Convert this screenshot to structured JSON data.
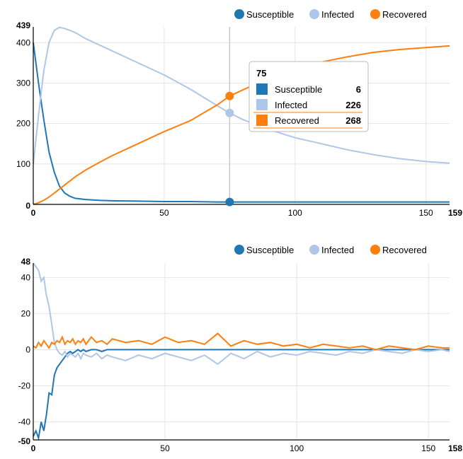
{
  "colors": {
    "susceptible": "#1f77b4",
    "infected": "#aec7e8",
    "recovered": "#ff7f0e",
    "grid": "#e5e5e5",
    "axis": "#000000"
  },
  "chart_data": [
    {
      "type": "line",
      "legend": [
        "Susceptible",
        "Infected",
        "Recovered"
      ],
      "legend_position": "top-right",
      "grid": true,
      "xlim": [
        0,
        159
      ],
      "ylim": [
        0,
        439
      ],
      "x_ticks": [
        "0",
        "50",
        "100",
        "150",
        "159"
      ],
      "y_ticks": [
        "0",
        "100",
        "200",
        "300",
        "400",
        "439"
      ],
      "x": [
        0,
        2,
        4,
        6,
        8,
        10,
        12,
        14,
        16,
        20,
        25,
        30,
        40,
        50,
        60,
        70,
        75,
        80,
        90,
        100,
        110,
        120,
        130,
        140,
        150,
        159
      ],
      "series": [
        {
          "name": "Susceptible",
          "values": [
            400,
            300,
            210,
            130,
            80,
            45,
            28,
            20,
            15,
            12,
            10,
            9,
            8,
            7,
            7,
            6,
            6,
            6,
            6,
            6,
            6,
            6,
            6,
            6,
            6,
            6
          ]
        },
        {
          "name": "Infected",
          "values": [
            100,
            220,
            330,
            400,
            430,
            438,
            435,
            430,
            425,
            410,
            395,
            380,
            350,
            320,
            285,
            245,
            226,
            210,
            185,
            165,
            150,
            135,
            123,
            113,
            106,
            102
          ]
        },
        {
          "name": "Recovered",
          "values": [
            0,
            4,
            10,
            18,
            28,
            38,
            48,
            58,
            68,
            85,
            103,
            120,
            150,
            180,
            207,
            245,
            268,
            283,
            312,
            335,
            352,
            365,
            376,
            383,
            388,
            392
          ]
        }
      ],
      "tooltip": {
        "x": "75",
        "rows": [
          {
            "name": "Susceptible",
            "value": "6"
          },
          {
            "name": "Infected",
            "value": "226"
          },
          {
            "name": "Recovered",
            "value": "268"
          }
        ]
      }
    },
    {
      "type": "line",
      "legend": [
        "Susceptible",
        "Infected",
        "Recovered"
      ],
      "legend_position": "top-right",
      "grid": true,
      "xlim": [
        0,
        158
      ],
      "ylim": [
        -50,
        48
      ],
      "x_ticks": [
        "0",
        "50",
        "100",
        "150",
        "158"
      ],
      "y_ticks": [
        "-50",
        "-40",
        "-20",
        "0",
        "20",
        "40",
        "48"
      ],
      "x": [
        0,
        1,
        2,
        3,
        4,
        5,
        6,
        7,
        8,
        9,
        10,
        11,
        12,
        13,
        14,
        15,
        16,
        17,
        18,
        19,
        20,
        22,
        24,
        26,
        28,
        30,
        35,
        40,
        45,
        50,
        55,
        60,
        65,
        70,
        75,
        80,
        85,
        90,
        95,
        100,
        105,
        110,
        115,
        120,
        125,
        130,
        135,
        140,
        145,
        150,
        155,
        158
      ],
      "series": [
        {
          "name": "Susceptible",
          "values": [
            -48,
            -45,
            -49,
            -40,
            -45,
            -36,
            -24,
            -25,
            -14,
            -10,
            -8,
            -6,
            -4,
            -2,
            -1,
            -2,
            -1,
            0,
            -1,
            0,
            -1,
            0,
            0,
            -1,
            0,
            0,
            0,
            0,
            0,
            0,
            0,
            0,
            0,
            0,
            0,
            0,
            0,
            0,
            0,
            0,
            0,
            0,
            0,
            0,
            0,
            0,
            0,
            0,
            0,
            0,
            0,
            0
          ]
        },
        {
          "name": "Infected",
          "values": [
            48,
            46,
            44,
            38,
            40,
            30,
            24,
            14,
            4,
            0,
            -2,
            -3,
            -1,
            -4,
            -2,
            -3,
            -4,
            -2,
            -5,
            -2,
            -3,
            -4,
            -2,
            -5,
            -3,
            -4,
            -6,
            -3,
            -5,
            -2,
            -4,
            -6,
            -3,
            -8,
            -2,
            -5,
            -1,
            -4,
            -2,
            -3,
            -1,
            -2,
            -3,
            -1,
            -2,
            0,
            -1,
            -2,
            0,
            -1,
            0,
            -1
          ]
        },
        {
          "name": "Recovered",
          "values": [
            2,
            1,
            4,
            2,
            5,
            3,
            1,
            4,
            3,
            5,
            4,
            7,
            3,
            5,
            4,
            6,
            3,
            5,
            4,
            6,
            3,
            7,
            4,
            5,
            3,
            6,
            4,
            5,
            3,
            7,
            4,
            5,
            3,
            9,
            2,
            5,
            3,
            4,
            2,
            3,
            1,
            3,
            2,
            1,
            2,
            0,
            2,
            1,
            0,
            2,
            1,
            1
          ]
        }
      ]
    }
  ]
}
